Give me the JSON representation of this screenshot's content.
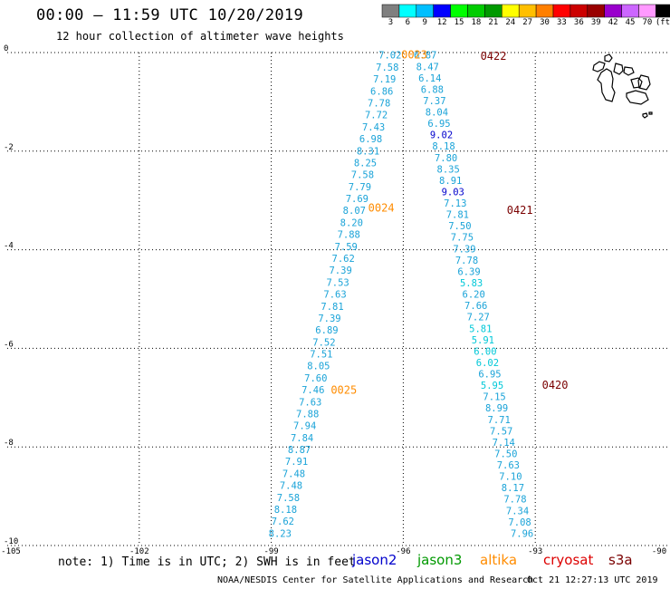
{
  "header": {
    "title": "00:00 – 11:59 UTC 10/20/2019",
    "subtitle": "12 hour collection of altimeter wave heights"
  },
  "legend": {
    "ticks": [
      "3",
      "6",
      "9",
      "12",
      "15",
      "18",
      "21",
      "24",
      "27",
      "30",
      "33",
      "36",
      "39",
      "42",
      "45",
      "70",
      "(ft)"
    ],
    "colors": [
      "#7f7f7f",
      "#00ffff",
      "#00bfff",
      "#0000ff",
      "#00ff00",
      "#00cc00",
      "#009900",
      "#ffff00",
      "#ffbf00",
      "#ff7f00",
      "#ff0000",
      "#cc0000",
      "#990000",
      "#9900cc",
      "#cc66ff",
      "#ff99ff",
      "#000000"
    ]
  },
  "axes": {
    "x_ticks": [
      "-105",
      "-102",
      "-99",
      "-96",
      "-93",
      "-90"
    ],
    "y_ticks": [
      "0",
      "-2",
      "-4",
      "-6",
      "-8",
      "-10"
    ],
    "x_range": [
      -105,
      -90
    ],
    "y_range": [
      -10,
      0
    ]
  },
  "tracks": [
    {
      "label": "0023",
      "label_color": "#ff8c00",
      "color": "#1aa3d8",
      "lon_top": -96.3,
      "lon_bottom": -98.8,
      "lat_top": -0.05,
      "lat_bottom": -9.75,
      "values": [
        "7.02",
        "7.58",
        "7.19",
        "6.86",
        "7.78",
        "7.72",
        "7.43",
        "6.98",
        "8.31",
        "8.25",
        "7.58",
        "7.79",
        "7.69",
        "8.07",
        "8.20",
        "7.88",
        "7.59",
        "7.62",
        "7.39",
        "7.53",
        "7.63",
        "7.81",
        "7.39",
        "6.89",
        "7.52",
        "7.51",
        "8.05",
        "7.60",
        "7.46",
        "7.63",
        "7.88",
        "7.94",
        "7.84",
        "8.87",
        "7.91",
        "7.48",
        "7.48",
        "7.58",
        "8.18",
        "7.62",
        "8.23"
      ]
    },
    {
      "label": "0422",
      "label_color": "#7a0000",
      "color": "#1aa3d8",
      "lon_top": -95.5,
      "lon_bottom": -93.3,
      "lat_top": -0.05,
      "lat_bottom": -9.75,
      "values": [
        "6.87",
        "8.47",
        "6.14",
        "6.88",
        "7.37",
        "8.04",
        "6.95",
        "9.02",
        "8.18",
        "7.80",
        "8.35",
        "8.91",
        "9.03",
        "7.13",
        "7.81",
        "7.50",
        "7.75",
        "7.39",
        "7.78",
        "6.39",
        "5.83",
        "6.20",
        "7.66",
        "7.27",
        "5.81",
        "5.91",
        "6.00",
        "6.02",
        "6.95",
        "5.95",
        "7.15",
        "8.99",
        "7.71",
        "7.57",
        "7.14",
        "7.50",
        "7.63",
        "7.10",
        "8.17",
        "7.78",
        "7.34",
        "7.08",
        "7.96"
      ]
    }
  ],
  "pass_labels": [
    {
      "text": "0023",
      "color": "#ff8c00",
      "lon": -95.75,
      "lat": -0.05
    },
    {
      "text": "0422",
      "color": "#7a0000",
      "lon": -93.95,
      "lat": -0.07
    },
    {
      "text": "0024",
      "color": "#ff8c00",
      "lon": -96.5,
      "lat": -3.15
    },
    {
      "text": "0421",
      "color": "#7a0000",
      "lon": -93.35,
      "lat": -3.2
    },
    {
      "text": "0025",
      "color": "#ff8c00",
      "lon": -97.35,
      "lat": -6.85
    },
    {
      "text": "0420",
      "color": "#7a0000",
      "lon": -92.55,
      "lat": -6.75
    }
  ],
  "footer": {
    "note": "note: 1) Time is in UTC; 2) SWH is in feet",
    "satellites": [
      {
        "name": "jason2",
        "color": "#0000cc"
      },
      {
        "name": "jason3",
        "color": "#009900"
      },
      {
        "name": "altika",
        "color": "#ff8c00"
      },
      {
        "name": "cryosat",
        "color": "#dd0000"
      },
      {
        "name": "s3a",
        "color": "#7a0000"
      }
    ],
    "credit": "NOAA/NESDIS Center for Satellite Applications and Research",
    "timestamp": "Oct 21 12:27:13 UTC 2019"
  }
}
